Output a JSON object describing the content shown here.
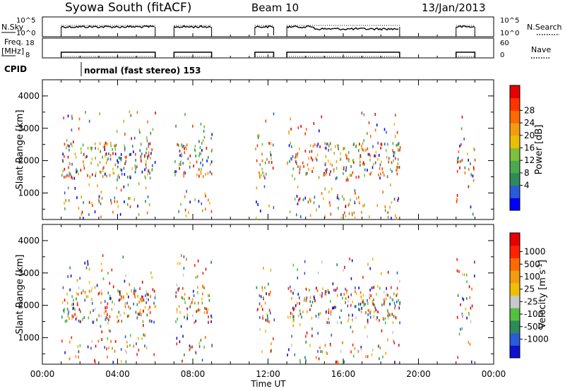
{
  "header": {
    "title": "Syowa South (fitACF)",
    "beam": "Beam 10",
    "date": "13/Jan/2013"
  },
  "top_panels": {
    "nsky_label": "N.Sky",
    "nsky_ticks": [
      "10^5",
      "10^0"
    ],
    "nsearch_label": "N.Search",
    "nsearch_ticks": [
      "10^5",
      "10^0"
    ],
    "freq_label": "Freq.",
    "freq_unit": "[MHz]",
    "freq_ticks": [
      "18",
      "8"
    ],
    "nave_label": "Nave",
    "nave_ticks": [
      "60",
      "0"
    ],
    "cpid_label": "CPID",
    "cpid_text": "normal (fast stereo) 153"
  },
  "chart_data": [
    {
      "type": "scatter",
      "name": "power",
      "ylabel": "Slant Range [km]",
      "xlabel": "Time UT",
      "ylim": [
        180,
        4500
      ],
      "yticks": [
        "1000",
        "2000",
        "3000",
        "4000"
      ],
      "xticks": [
        "00:00",
        "04:00",
        "08:00",
        "12:00",
        "16:00",
        "20:00",
        "00:00"
      ],
      "colorbar": {
        "label": "Power [dB]",
        "ticks": [
          "28",
          "24",
          "20",
          "16",
          "12",
          "8",
          "4"
        ],
        "colors": [
          "#0000ff",
          "#2a5bd9",
          "#2e8b57",
          "#4ca84c",
          "#7fbf3a",
          "#e8c000",
          "#f39c12",
          "#ff6a00",
          "#ff3300",
          "#e60000"
        ]
      },
      "operating_intervals_hours": [
        [
          1.0,
          6.0
        ],
        [
          7.0,
          9.0
        ],
        [
          11.3,
          12.3
        ],
        [
          13.0,
          19.0
        ],
        [
          22.0,
          23.0
        ]
      ]
    },
    {
      "type": "scatter",
      "name": "velocity",
      "ylabel": "Slant Range [km]",
      "xlabel": "Time UT",
      "ylim": [
        180,
        4500
      ],
      "yticks": [
        "1000",
        "2000",
        "3000",
        "4000"
      ],
      "xticks": [
        "00:00",
        "04:00",
        "08:00",
        "12:00",
        "16:00",
        "20:00",
        "00:00"
      ],
      "colorbar": {
        "label": "Velocity [m s^-1]",
        "ticks": [
          "1000",
          "500",
          "100",
          "25",
          "-25",
          "-100",
          "-500",
          "-1000"
        ],
        "colors": [
          "#1010d0",
          "#2a5bd9",
          "#2e8b57",
          "#55c040",
          "#c8c8c8",
          "#f0c000",
          "#f39c12",
          "#ff6a00",
          "#ff2200",
          "#e60000"
        ]
      },
      "operating_intervals_hours": [
        [
          1.0,
          6.0
        ],
        [
          7.0,
          9.0
        ],
        [
          11.3,
          12.3
        ],
        [
          13.0,
          19.0
        ],
        [
          22.0,
          23.0
        ]
      ]
    }
  ]
}
